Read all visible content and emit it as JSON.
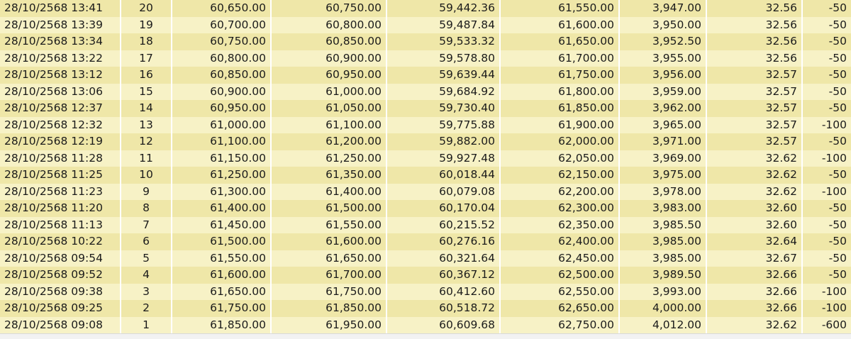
{
  "rows": [
    {
      "datetime": "28/10/2568 13:41",
      "no": "20",
      "c1": "60,650.00",
      "c2": "60,750.00",
      "c3": "59,442.36",
      "c4": "61,550.00",
      "c5": "3,947.00",
      "c6": "32.56",
      "c7": "-50"
    },
    {
      "datetime": "28/10/2568 13:39",
      "no": "19",
      "c1": "60,700.00",
      "c2": "60,800.00",
      "c3": "59,487.84",
      "c4": "61,600.00",
      "c5": "3,950.00",
      "c6": "32.56",
      "c7": "-50"
    },
    {
      "datetime": "28/10/2568 13:34",
      "no": "18",
      "c1": "60,750.00",
      "c2": "60,850.00",
      "c3": "59,533.32",
      "c4": "61,650.00",
      "c5": "3,952.50",
      "c6": "32.56",
      "c7": "-50"
    },
    {
      "datetime": "28/10/2568 13:22",
      "no": "17",
      "c1": "60,800.00",
      "c2": "60,900.00",
      "c3": "59,578.80",
      "c4": "61,700.00",
      "c5": "3,955.00",
      "c6": "32.56",
      "c7": "-50"
    },
    {
      "datetime": "28/10/2568 13:12",
      "no": "16",
      "c1": "60,850.00",
      "c2": "60,950.00",
      "c3": "59,639.44",
      "c4": "61,750.00",
      "c5": "3,956.00",
      "c6": "32.57",
      "c7": "-50"
    },
    {
      "datetime": "28/10/2568 13:06",
      "no": "15",
      "c1": "60,900.00",
      "c2": "61,000.00",
      "c3": "59,684.92",
      "c4": "61,800.00",
      "c5": "3,959.00",
      "c6": "32.57",
      "c7": "-50"
    },
    {
      "datetime": "28/10/2568 12:37",
      "no": "14",
      "c1": "60,950.00",
      "c2": "61,050.00",
      "c3": "59,730.40",
      "c4": "61,850.00",
      "c5": "3,962.00",
      "c6": "32.57",
      "c7": "-50"
    },
    {
      "datetime": "28/10/2568 12:32",
      "no": "13",
      "c1": "61,000.00",
      "c2": "61,100.00",
      "c3": "59,775.88",
      "c4": "61,900.00",
      "c5": "3,965.00",
      "c6": "32.57",
      "c7": "-100"
    },
    {
      "datetime": "28/10/2568 12:19",
      "no": "12",
      "c1": "61,100.00",
      "c2": "61,200.00",
      "c3": "59,882.00",
      "c4": "62,000.00",
      "c5": "3,971.00",
      "c6": "32.57",
      "c7": "-50"
    },
    {
      "datetime": "28/10/2568 11:28",
      "no": "11",
      "c1": "61,150.00",
      "c2": "61,250.00",
      "c3": "59,927.48",
      "c4": "62,050.00",
      "c5": "3,969.00",
      "c6": "32.62",
      "c7": "-100"
    },
    {
      "datetime": "28/10/2568 11:25",
      "no": "10",
      "c1": "61,250.00",
      "c2": "61,350.00",
      "c3": "60,018.44",
      "c4": "62,150.00",
      "c5": "3,975.00",
      "c6": "32.62",
      "c7": "-50"
    },
    {
      "datetime": "28/10/2568 11:23",
      "no": "9",
      "c1": "61,300.00",
      "c2": "61,400.00",
      "c3": "60,079.08",
      "c4": "62,200.00",
      "c5": "3,978.00",
      "c6": "32.62",
      "c7": "-100"
    },
    {
      "datetime": "28/10/2568 11:20",
      "no": "8",
      "c1": "61,400.00",
      "c2": "61,500.00",
      "c3": "60,170.04",
      "c4": "62,300.00",
      "c5": "3,983.00",
      "c6": "32.60",
      "c7": "-50"
    },
    {
      "datetime": "28/10/2568 11:13",
      "no": "7",
      "c1": "61,450.00",
      "c2": "61,550.00",
      "c3": "60,215.52",
      "c4": "62,350.00",
      "c5": "3,985.50",
      "c6": "32.60",
      "c7": "-50"
    },
    {
      "datetime": "28/10/2568 10:22",
      "no": "6",
      "c1": "61,500.00",
      "c2": "61,600.00",
      "c3": "60,276.16",
      "c4": "62,400.00",
      "c5": "3,985.00",
      "c6": "32.64",
      "c7": "-50"
    },
    {
      "datetime": "28/10/2568 09:54",
      "no": "5",
      "c1": "61,550.00",
      "c2": "61,650.00",
      "c3": "60,321.64",
      "c4": "62,450.00",
      "c5": "3,985.00",
      "c6": "32.67",
      "c7": "-50"
    },
    {
      "datetime": "28/10/2568 09:52",
      "no": "4",
      "c1": "61,600.00",
      "c2": "61,700.00",
      "c3": "60,367.12",
      "c4": "62,500.00",
      "c5": "3,989.50",
      "c6": "32.66",
      "c7": "-50"
    },
    {
      "datetime": "28/10/2568 09:38",
      "no": "3",
      "c1": "61,650.00",
      "c2": "61,750.00",
      "c3": "60,412.60",
      "c4": "62,550.00",
      "c5": "3,993.00",
      "c6": "32.66",
      "c7": "-100"
    },
    {
      "datetime": "28/10/2568 09:25",
      "no": "2",
      "c1": "61,750.00",
      "c2": "61,850.00",
      "c3": "60,518.72",
      "c4": "62,650.00",
      "c5": "4,000.00",
      "c6": "32.66",
      "c7": "-100"
    },
    {
      "datetime": "28/10/2568 09:08",
      "no": "1",
      "c1": "61,850.00",
      "c2": "61,950.00",
      "c3": "60,609.68",
      "c4": "62,750.00",
      "c5": "4,012.00",
      "c6": "32.62",
      "c7": "-600"
    }
  ]
}
